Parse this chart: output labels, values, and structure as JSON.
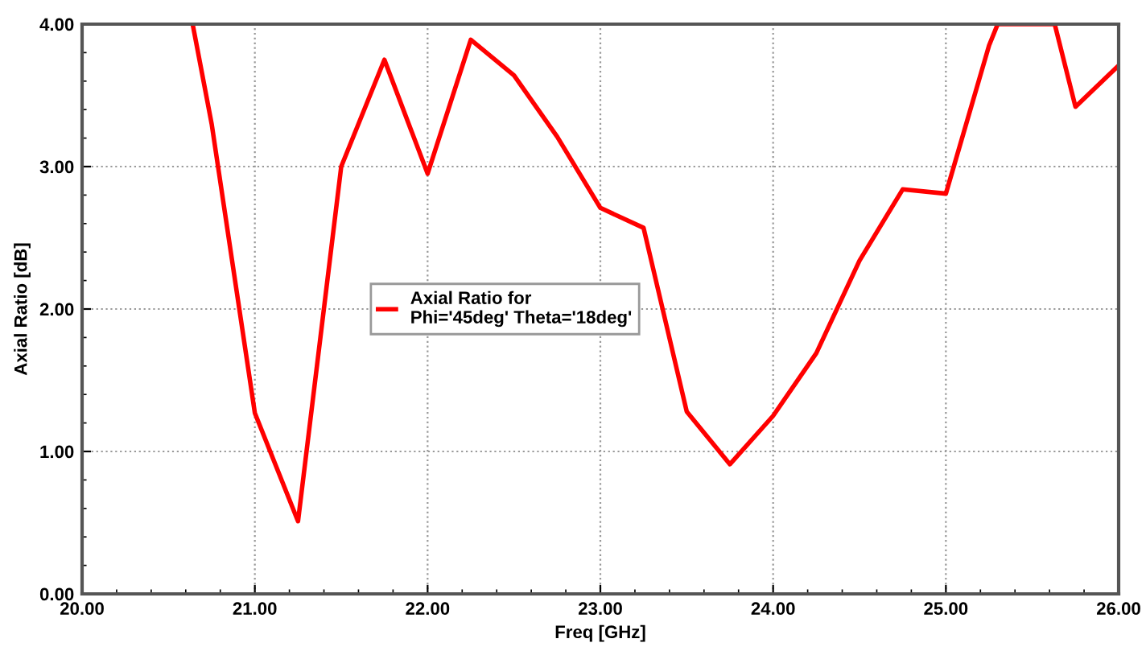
{
  "chart_data": {
    "type": "line",
    "xlabel": "Freq [GHz]",
    "ylabel": "Axial Ratio [dB]",
    "series": [
      {
        "name": "Axial Ratio for\nPhi='45deg' Theta='18deg'",
        "color": "#ff0000",
        "x": [
          20.64,
          20.75,
          21.0,
          21.25,
          21.5,
          21.75,
          22.0,
          22.25,
          22.5,
          22.75,
          23.0,
          23.25,
          23.5,
          23.75,
          24.0,
          24.25,
          24.5,
          24.75,
          25.0,
          25.25,
          25.3,
          25.63,
          25.75,
          26.0
        ],
        "values": [
          4.0,
          3.3,
          1.27,
          0.51,
          3.0,
          3.75,
          2.95,
          3.89,
          3.64,
          3.21,
          2.71,
          2.57,
          1.28,
          0.91,
          1.25,
          1.69,
          2.34,
          2.84,
          2.81,
          3.85,
          4.0,
          4.0,
          3.42,
          3.71
        ]
      }
    ],
    "xlim": [
      20,
      26
    ],
    "ylim": [
      0,
      4
    ],
    "xticks": [
      {
        "value": 20,
        "label": "20.00"
      },
      {
        "value": 21,
        "label": "21.00"
      },
      {
        "value": 22,
        "label": "22.00"
      },
      {
        "value": 23,
        "label": "23.00"
      },
      {
        "value": 24,
        "label": "24.00"
      },
      {
        "value": 25,
        "label": "25.00"
      },
      {
        "value": 26,
        "label": "26.00"
      }
    ],
    "yticks": [
      {
        "value": 0,
        "label": "0.00"
      },
      {
        "value": 1,
        "label": "1.00"
      },
      {
        "value": 2,
        "label": "2.00"
      },
      {
        "value": 3,
        "label": "3.00"
      },
      {
        "value": 4,
        "label": "4.00"
      }
    ],
    "grid": true,
    "legend": "center left",
    "line_style": "solid",
    "marker": "none"
  }
}
